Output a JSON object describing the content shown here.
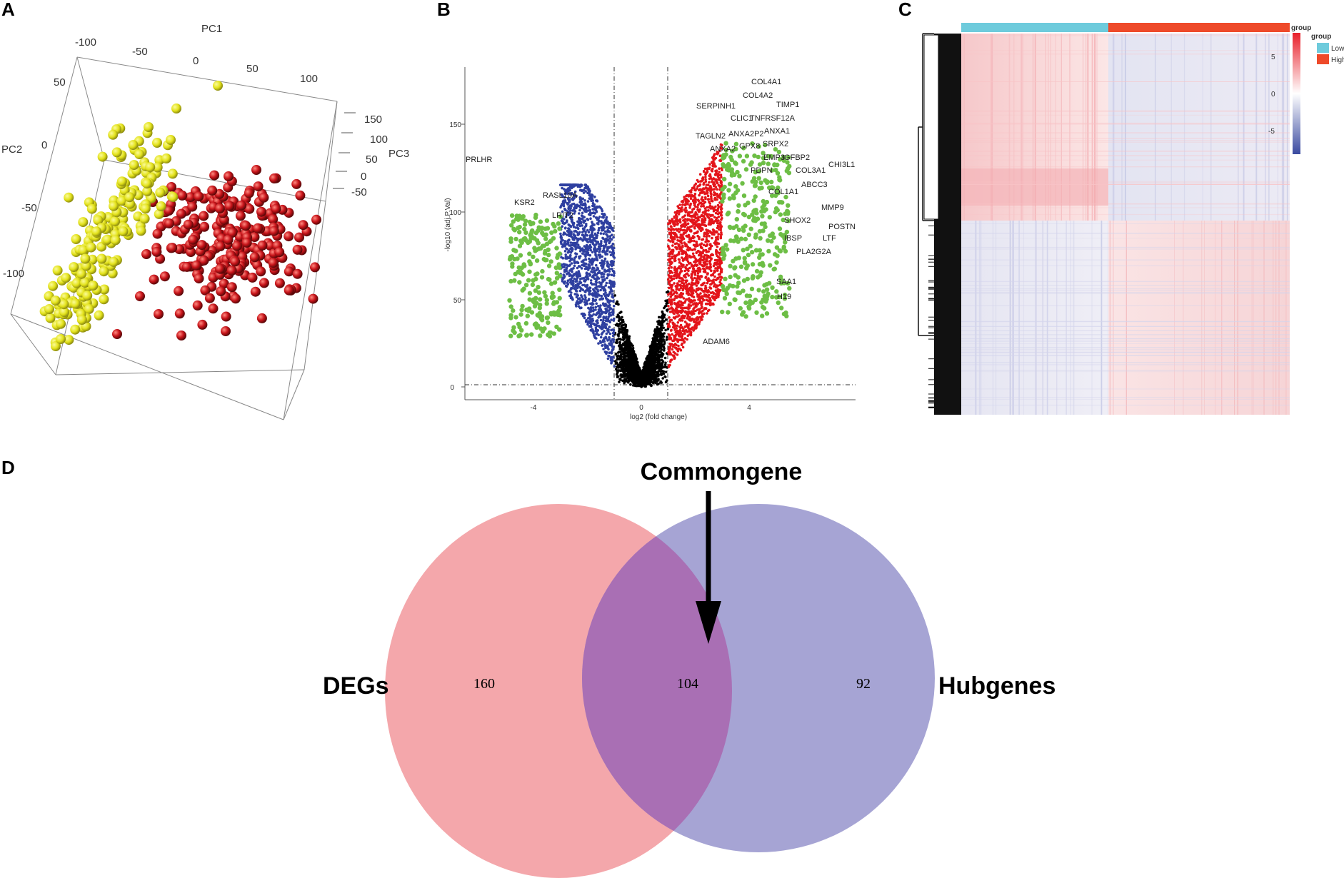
{
  "panels": {
    "a": "A",
    "b": "B",
    "c": "C",
    "d": "D"
  },
  "pca": {
    "axis_titles": {
      "pc1": "PC1",
      "pc2": "PC2",
      "pc3": "PC3"
    },
    "pc1_ticks": [
      "-100",
      "-50",
      "0",
      "50",
      "100"
    ],
    "pc2_ticks": [
      "50",
      "0",
      "-50",
      "-100"
    ],
    "pc3_ticks": [
      "150",
      "100",
      "50",
      "0",
      "-50"
    ],
    "colors": {
      "group_yellow": "#e3e21a",
      "group_red": "#c8141a"
    }
  },
  "volcano": {
    "xlabel": "log2 (fold change)",
    "ylabel": "-log10 (adj.P.Val)",
    "x_ticks": [
      "-4",
      "0",
      "4"
    ],
    "y_ticks": [
      "0",
      "50",
      "100",
      "150"
    ],
    "colors": {
      "down_strong": "#6dbe45",
      "down": "#2e3fa0",
      "ns": "#000000",
      "up": "#e3141a",
      "up_strong": "#6dbe45"
    },
    "gene_labels": [
      "COL4A1",
      "COL4A2",
      "TIMP1",
      "SERPINH1",
      "CLIC1",
      "TNFRSF12A",
      "ANXA1",
      "TAGLN2",
      "ANXA2P2",
      "SRPX2",
      "ANXA2",
      "GPX8",
      "EMP3",
      "IGFBP2",
      "CHI3L1",
      "PDPN",
      "COL3A1",
      "ABCC3",
      "COL1A1",
      "MMP9",
      "SHOX2",
      "POSTN",
      "IBSP",
      "LTF",
      "PLA2G2A",
      "SAA1",
      "H19",
      "ADAM6",
      "PRLHR",
      "KSR2",
      "RASL10A",
      "LRIT2"
    ]
  },
  "heatmap": {
    "legend_title": "group",
    "groups": [
      {
        "label": "Low",
        "color": "#6ecbdc"
      },
      {
        "label": "High",
        "color": "#ee4a2a"
      }
    ],
    "scale_ticks": [
      "5",
      "0",
      "-5"
    ],
    "scale_colors": {
      "high": "#e8202a",
      "mid": "#ffffff",
      "low": "#3a4aa0"
    }
  },
  "venn": {
    "annotation": "Commongene",
    "left_label": "DEGs",
    "right_label": "Hubgenes",
    "left_only": "160",
    "intersection": "104",
    "right_only": "92",
    "colors": {
      "left": "#f4a7ab",
      "right": "#a6a4d4",
      "overlap": "#a96fb4"
    }
  }
}
